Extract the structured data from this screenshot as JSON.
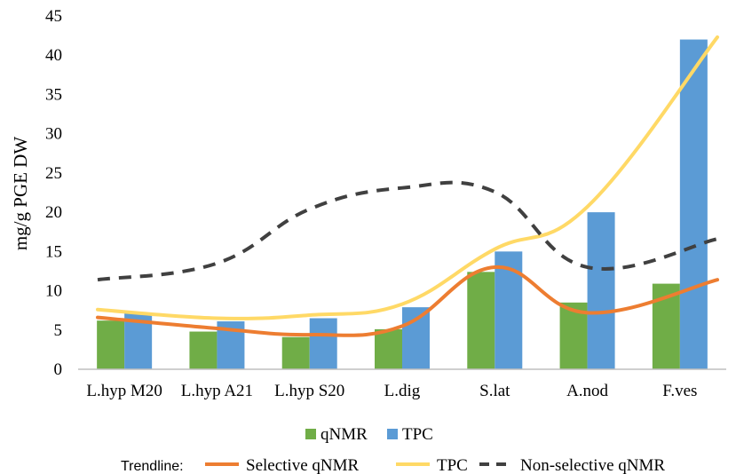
{
  "chart_data": {
    "type": "bar",
    "ylabel": "mg/g PGE DW",
    "ylim": [
      0,
      45
    ],
    "yticks": [
      "0",
      "5",
      "10",
      "15",
      "20",
      "25",
      "30",
      "35",
      "40",
      "45"
    ],
    "grid": false,
    "categories": [
      "L.hyp M20",
      "L.hyp A21",
      "L.hyp S20",
      "L.dig",
      "S.lat",
      "A.nod",
      "F.ves"
    ],
    "series": [
      {
        "name": "qNMR",
        "values": [
          6.2,
          4.8,
          4.1,
          5.1,
          12.4,
          8.5,
          10.9
        ],
        "color": "#70ad47"
      },
      {
        "name": "TPC",
        "values": [
          7.2,
          6.1,
          6.5,
          7.9,
          15.0,
          20.0,
          42.0
        ],
        "color": "#5b9bd5"
      }
    ],
    "trendlines": [
      {
        "name": "Selective qNMR",
        "values": [
          6.6,
          5.2,
          4.4,
          5.5,
          13.0,
          7.2,
          11.4
        ],
        "color": "#ed7d31",
        "style": "solid"
      },
      {
        "name": "TPC",
        "values": [
          7.6,
          6.5,
          6.9,
          8.3,
          15.3,
          20.7,
          42.3
        ],
        "color": "#ffd966",
        "style": "solid"
      },
      {
        "name": "Non-selective qNMR",
        "values": [
          11.4,
          13.5,
          20.4,
          23.1,
          22.6,
          13.0,
          16.6
        ],
        "color": "#404040",
        "style": "dashed"
      }
    ],
    "legend_placement": "bottom",
    "trendline_legend_prefix": "Trendline:"
  }
}
